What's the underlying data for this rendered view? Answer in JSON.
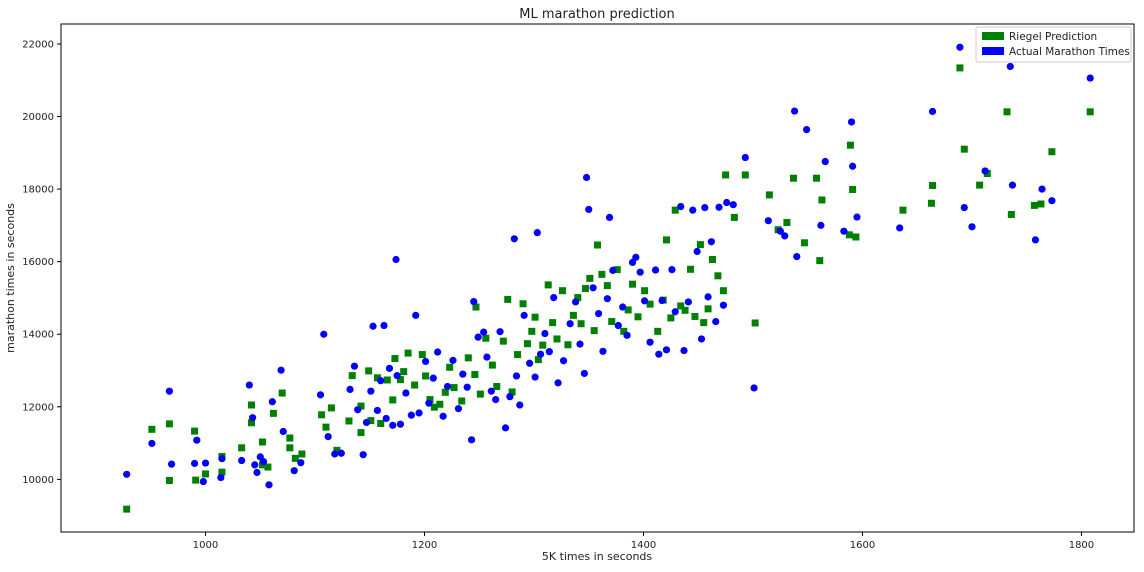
{
  "chart_data": {
    "type": "scatter",
    "title": "ML marathon prediction",
    "xlabel": "5K times in seconds",
    "ylabel": "marathon times in seconds",
    "xlim": [
      868,
      1848
    ],
    "ylim": [
      8550,
      22550
    ],
    "xticks": [
      1000,
      1200,
      1400,
      1600,
      1800
    ],
    "yticks": [
      10000,
      12000,
      14000,
      16000,
      18000,
      20000,
      22000
    ],
    "legend_position": "top-right",
    "grid": false,
    "series": [
      {
        "name": "Riegel Prediction",
        "color": "#008000",
        "marker": "square",
        "points": [
          [
            928,
            9180
          ],
          [
            951,
            11380
          ],
          [
            967,
            11530
          ],
          [
            967,
            9970
          ],
          [
            990,
            11330
          ],
          [
            991,
            9980
          ],
          [
            1000,
            10150
          ],
          [
            1015,
            10200
          ],
          [
            1015,
            10630
          ],
          [
            1033,
            10870
          ],
          [
            1042,
            12050
          ],
          [
            1042,
            11560
          ],
          [
            1052,
            11030
          ],
          [
            1052,
            10400
          ],
          [
            1057,
            10340
          ],
          [
            1062,
            11820
          ],
          [
            1070,
            12380
          ],
          [
            1077,
            11140
          ],
          [
            1077,
            10870
          ],
          [
            1082,
            10580
          ],
          [
            1088,
            10700
          ],
          [
            1106,
            11780
          ],
          [
            1110,
            11440
          ],
          [
            1115,
            11970
          ],
          [
            1120,
            10800
          ],
          [
            1131,
            11610
          ],
          [
            1134,
            12860
          ],
          [
            1142,
            12020
          ],
          [
            1142,
            11290
          ],
          [
            1149,
            12990
          ],
          [
            1151,
            11620
          ],
          [
            1157,
            12800
          ],
          [
            1160,
            11540
          ],
          [
            1166,
            12740
          ],
          [
            1171,
            12190
          ],
          [
            1173,
            13330
          ],
          [
            1178,
            12750
          ],
          [
            1181,
            12970
          ],
          [
            1185,
            13480
          ],
          [
            1191,
            12600
          ],
          [
            1198,
            13440
          ],
          [
            1201,
            12850
          ],
          [
            1205,
            12200
          ],
          [
            1209,
            11990
          ],
          [
            1214,
            12070
          ],
          [
            1219,
            12400
          ],
          [
            1223,
            13090
          ],
          [
            1227,
            12530
          ],
          [
            1234,
            12160
          ],
          [
            1240,
            13350
          ],
          [
            1246,
            12890
          ],
          [
            1247,
            14750
          ],
          [
            1251,
            12350
          ],
          [
            1256,
            13890
          ],
          [
            1262,
            13150
          ],
          [
            1266,
            12560
          ],
          [
            1272,
            13810
          ],
          [
            1276,
            14960
          ],
          [
            1280,
            12410
          ],
          [
            1285,
            13440
          ],
          [
            1290,
            14840
          ],
          [
            1294,
            13740
          ],
          [
            1298,
            14080
          ],
          [
            1301,
            14470
          ],
          [
            1304,
            13300
          ],
          [
            1308,
            13700
          ],
          [
            1313,
            15360
          ],
          [
            1317,
            14320
          ],
          [
            1321,
            13870
          ],
          [
            1326,
            15200
          ],
          [
            1331,
            13710
          ],
          [
            1336,
            14520
          ],
          [
            1340,
            15010
          ],
          [
            1343,
            14290
          ],
          [
            1347,
            15260
          ],
          [
            1351,
            15540
          ],
          [
            1355,
            14100
          ],
          [
            1358,
            16460
          ],
          [
            1362,
            15650
          ],
          [
            1367,
            15340
          ],
          [
            1371,
            14350
          ],
          [
            1376,
            15780
          ],
          [
            1382,
            14080
          ],
          [
            1386,
            14670
          ],
          [
            1390,
            15380
          ],
          [
            1395,
            14480
          ],
          [
            1401,
            15200
          ],
          [
            1406,
            14830
          ],
          [
            1413,
            14080
          ],
          [
            1418,
            14940
          ],
          [
            1421,
            16600
          ],
          [
            1425,
            14450
          ],
          [
            1429,
            17420
          ],
          [
            1434,
            14780
          ],
          [
            1438,
            14660
          ],
          [
            1443,
            15790
          ],
          [
            1447,
            14490
          ],
          [
            1452,
            16470
          ],
          [
            1455,
            14320
          ],
          [
            1459,
            14700
          ],
          [
            1463,
            16060
          ],
          [
            1468,
            15610
          ],
          [
            1473,
            15200
          ],
          [
            1475,
            18390
          ],
          [
            1483,
            17220
          ],
          [
            1493,
            18390
          ],
          [
            1502,
            14310
          ],
          [
            1515,
            17840
          ],
          [
            1523,
            16880
          ],
          [
            1531,
            17080
          ],
          [
            1537,
            18300
          ],
          [
            1547,
            16520
          ],
          [
            1558,
            18300
          ],
          [
            1561,
            16030
          ],
          [
            1563,
            17700
          ],
          [
            1588,
            16740
          ],
          [
            1589,
            19210
          ],
          [
            1591,
            17990
          ],
          [
            1594,
            16680
          ],
          [
            1637,
            17420
          ],
          [
            1663,
            17610
          ],
          [
            1664,
            18100
          ],
          [
            1689,
            21340
          ],
          [
            1693,
            19100
          ],
          [
            1707,
            18110
          ],
          [
            1714,
            18430
          ],
          [
            1732,
            20130
          ],
          [
            1736,
            17300
          ],
          [
            1757,
            17550
          ],
          [
            1763,
            17590
          ],
          [
            1773,
            19030
          ],
          [
            1808,
            20130
          ]
        ]
      },
      {
        "name": "Actual Marathon Times",
        "color": "#0000FF",
        "marker": "circle",
        "points": [
          [
            928,
            10140
          ],
          [
            951,
            10990
          ],
          [
            967,
            12430
          ],
          [
            969,
            10420
          ],
          [
            990,
            10440
          ],
          [
            992,
            11080
          ],
          [
            998,
            9940
          ],
          [
            1000,
            10450
          ],
          [
            1014,
            10050
          ],
          [
            1015,
            10570
          ],
          [
            1033,
            10520
          ],
          [
            1040,
            12600
          ],
          [
            1043,
            11700
          ],
          [
            1045,
            10400
          ],
          [
            1047,
            10190
          ],
          [
            1050,
            10620
          ],
          [
            1053,
            10490
          ],
          [
            1058,
            9850
          ],
          [
            1061,
            12140
          ],
          [
            1069,
            13010
          ],
          [
            1071,
            11320
          ],
          [
            1081,
            10240
          ],
          [
            1087,
            10460
          ],
          [
            1105,
            12330
          ],
          [
            1108,
            14000
          ],
          [
            1112,
            11180
          ],
          [
            1118,
            10700
          ],
          [
            1124,
            10720
          ],
          [
            1132,
            12480
          ],
          [
            1136,
            13120
          ],
          [
            1139,
            11920
          ],
          [
            1144,
            10680
          ],
          [
            1147,
            11570
          ],
          [
            1151,
            12430
          ],
          [
            1153,
            14220
          ],
          [
            1157,
            11900
          ],
          [
            1160,
            12720
          ],
          [
            1163,
            14240
          ],
          [
            1165,
            11680
          ],
          [
            1168,
            13060
          ],
          [
            1171,
            11490
          ],
          [
            1174,
            16060
          ],
          [
            1175,
            12860
          ],
          [
            1178,
            11520
          ],
          [
            1183,
            12380
          ],
          [
            1188,
            11770
          ],
          [
            1192,
            14520
          ],
          [
            1195,
            11830
          ],
          [
            1201,
            13250
          ],
          [
            1204,
            12100
          ],
          [
            1208,
            12790
          ],
          [
            1212,
            13510
          ],
          [
            1217,
            11740
          ],
          [
            1221,
            12560
          ],
          [
            1226,
            13280
          ],
          [
            1231,
            11950
          ],
          [
            1235,
            12900
          ],
          [
            1239,
            12540
          ],
          [
            1243,
            11090
          ],
          [
            1245,
            14900
          ],
          [
            1249,
            13920
          ],
          [
            1254,
            14060
          ],
          [
            1257,
            13370
          ],
          [
            1261,
            12430
          ],
          [
            1265,
            12200
          ],
          [
            1269,
            14070
          ],
          [
            1274,
            11420
          ],
          [
            1278,
            12280
          ],
          [
            1282,
            16630
          ],
          [
            1284,
            12850
          ],
          [
            1287,
            12050
          ],
          [
            1291,
            14520
          ],
          [
            1296,
            13200
          ],
          [
            1301,
            12820
          ],
          [
            1303,
            16800
          ],
          [
            1306,
            13450
          ],
          [
            1310,
            14020
          ],
          [
            1314,
            13520
          ],
          [
            1318,
            15010
          ],
          [
            1322,
            12660
          ],
          [
            1327,
            13270
          ],
          [
            1333,
            14290
          ],
          [
            1338,
            14890
          ],
          [
            1342,
            13730
          ],
          [
            1346,
            12920
          ],
          [
            1348,
            18320
          ],
          [
            1350,
            17440
          ],
          [
            1354,
            15280
          ],
          [
            1359,
            14570
          ],
          [
            1363,
            13530
          ],
          [
            1367,
            14980
          ],
          [
            1369,
            17220
          ],
          [
            1372,
            15760
          ],
          [
            1377,
            14240
          ],
          [
            1381,
            14750
          ],
          [
            1385,
            13970
          ],
          [
            1390,
            15980
          ],
          [
            1393,
            16120
          ],
          [
            1397,
            15710
          ],
          [
            1401,
            14920
          ],
          [
            1406,
            13780
          ],
          [
            1411,
            15770
          ],
          [
            1414,
            13450
          ],
          [
            1417,
            14930
          ],
          [
            1421,
            13570
          ],
          [
            1426,
            15780
          ],
          [
            1429,
            14620
          ],
          [
            1434,
            17520
          ],
          [
            1437,
            13550
          ],
          [
            1441,
            14890
          ],
          [
            1445,
            17420
          ],
          [
            1449,
            16280
          ],
          [
            1453,
            13870
          ],
          [
            1456,
            17490
          ],
          [
            1459,
            15030
          ],
          [
            1462,
            16550
          ],
          [
            1466,
            14350
          ],
          [
            1469,
            17500
          ],
          [
            1473,
            14800
          ],
          [
            1476,
            17630
          ],
          [
            1482,
            17570
          ],
          [
            1493,
            18870
          ],
          [
            1501,
            12520
          ],
          [
            1514,
            17130
          ],
          [
            1525,
            16840
          ],
          [
            1529,
            16710
          ],
          [
            1538,
            20150
          ],
          [
            1540,
            16140
          ],
          [
            1549,
            19640
          ],
          [
            1562,
            17000
          ],
          [
            1566,
            18760
          ],
          [
            1583,
            16840
          ],
          [
            1590,
            19850
          ],
          [
            1591,
            18630
          ],
          [
            1595,
            17230
          ],
          [
            1634,
            16930
          ],
          [
            1664,
            20140
          ],
          [
            1689,
            21910
          ],
          [
            1693,
            17490
          ],
          [
            1700,
            16960
          ],
          [
            1712,
            18500
          ],
          [
            1735,
            21380
          ],
          [
            1737,
            18110
          ],
          [
            1758,
            16600
          ],
          [
            1764,
            18000
          ],
          [
            1773,
            17680
          ],
          [
            1808,
            21060
          ]
        ]
      }
    ]
  }
}
